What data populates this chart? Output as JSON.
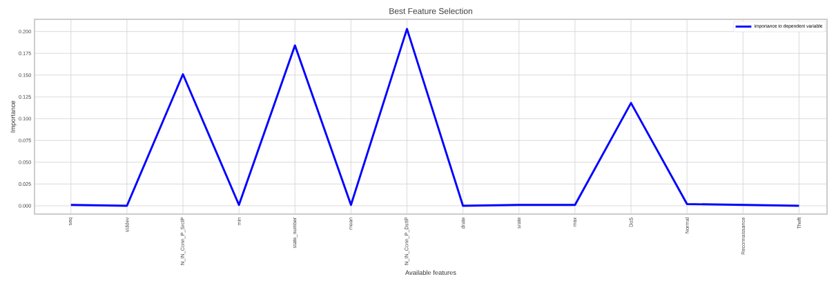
{
  "chart_data": {
    "type": "line",
    "title": "Best Feature Selection",
    "xlabel": "Available features",
    "ylabel": "Importance",
    "categories": [
      "seq",
      "stddev",
      "N_IN_Conn_P_SrcIP",
      "min",
      "state_number",
      "mean",
      "N_IN_Conn_P_DstIP",
      "drate",
      "srate",
      "max",
      "DoS",
      "Normal",
      "Reconnaissance",
      "Theft"
    ],
    "series": [
      {
        "name": "importance to dependent variable",
        "color": "#0000ff",
        "values": [
          0.001,
          0.0,
          0.151,
          0.001,
          0.184,
          0.001,
          0.203,
          0.0,
          0.001,
          0.001,
          0.118,
          0.002,
          0.001,
          0.0
        ]
      }
    ],
    "ylim": [
      -0.0095,
      0.214
    ],
    "yticks": [
      {
        "value": 0,
        "label": "0.000"
      },
      0.025,
      {
        "value": 0.05,
        "label": "0.050"
      },
      0.075,
      {
        "value": 0.1,
        "label": "0.100"
      },
      0.125,
      {
        "value": 0.15,
        "label": "0.150"
      },
      0.175,
      {
        "value": 0.2,
        "label": "0.200"
      }
    ],
    "grid": true,
    "legend": "top right"
  }
}
